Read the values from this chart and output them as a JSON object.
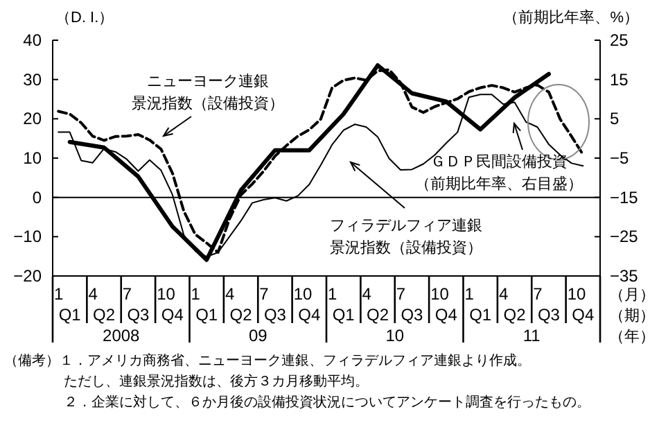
{
  "chart_data": {
    "type": "line",
    "ylabel": "（D. I.）",
    "y2label": "（前期比年率、%）",
    "xlabel": "（月）（期）（年）",
    "categories": [
      "1",
      null,
      null,
      "4",
      null,
      null,
      "7",
      null,
      null,
      "10",
      null,
      null,
      "1",
      null,
      null,
      "4",
      null,
      null,
      "7",
      null,
      null,
      "10",
      null,
      null,
      "1",
      null,
      null,
      "4",
      null,
      null,
      "7",
      null,
      null,
      "10",
      null,
      null,
      "1",
      null,
      null,
      "4",
      null,
      null,
      "7",
      null,
      null,
      "10",
      null,
      null
    ],
    "ylim": [
      -20,
      40
    ],
    "yticks": [
      -20,
      -10,
      0,
      10,
      20,
      30,
      40
    ],
    "y2lim": [
      -35,
      25
    ],
    "y2ticks": [
      -35,
      -25,
      -15,
      -5,
      5,
      15,
      25
    ],
    "ref_lines": [
      {
        "axis": "y",
        "value": 0,
        "color": "#000000"
      }
    ],
    "series": [
      {
        "name": "ニューヨーク連銀景況指数（設備投資）",
        "color": "#000000",
        "line_style": "dashed",
        "values": [
          21.9,
          21.2,
          19,
          15.6,
          14.5,
          15.5,
          15.6,
          16,
          14.6,
          12.3,
          6.2,
          -3.5,
          -9.4,
          -11.6,
          -14,
          -5.5,
          0.6,
          3.4,
          6.7,
          10.5,
          13.2,
          15.6,
          17.2,
          19.9,
          27.9,
          29.8,
          30.4,
          29.8,
          32.2,
          32.5,
          29.2,
          23,
          21.6,
          23.1,
          24.1,
          25.1,
          26.9,
          27.9,
          28.5,
          27.9,
          26.8,
          27.9,
          28.6,
          26.8,
          19.9,
          15.5,
          10.9,
          null
        ]
      },
      {
        "name": "フィラデルフィア連銀景況指数（設備投資）",
        "color": "#000000",
        "line_style": "solid",
        "values": [
          16.6,
          16.6,
          9.4,
          8.8,
          12.4,
          11.6,
          9.7,
          6.7,
          9.5,
          6.9,
          0.7,
          -9.6,
          -13.6,
          -15.1,
          -14,
          -10,
          -6,
          -1.4,
          -0.6,
          -0.1,
          -0.9,
          0.4,
          3.3,
          8.2,
          13.4,
          17.1,
          18.6,
          17.9,
          15.4,
          9.9,
          7,
          7.1,
          8.5,
          10.8,
          13.8,
          16.6,
          25.5,
          26.2,
          26.2,
          23.7,
          24.2,
          19.2,
          17.9,
          13.5,
          10.8,
          8.7,
          8,
          null
        ]
      },
      {
        "name": "ＧＤＰ民間設備投資（前期比年率、右目盛）",
        "color": "#000000",
        "line_style": "solid",
        "axis": "y2",
        "values": [
          null,
          -0.9,
          null,
          null,
          -2.3,
          null,
          null,
          -9.7,
          null,
          null,
          -22.4,
          null,
          null,
          -30.9,
          null,
          null,
          -13.2,
          null,
          null,
          -3,
          null,
          null,
          -3,
          null,
          null,
          6.2,
          null,
          null,
          18.6,
          null,
          null,
          11.5,
          null,
          null,
          9.4,
          null,
          null,
          2.3,
          null,
          null,
          10.4,
          null,
          null,
          16.4,
          null,
          null,
          null,
          null
        ]
      }
    ],
    "annotations": [
      "Q1",
      "Q2",
      "Q3",
      "Q4",
      "Q1",
      "Q2",
      "Q3",
      "Q4",
      "Q1",
      "Q2",
      "Q3",
      "Q4",
      "Q1",
      "Q2",
      "Q3",
      "Q4",
      "2008",
      "09",
      "10",
      "11",
      "（備考）１．アメリカ商務省、ニューヨーク連銀、フィラデルフィア連銀より作成。",
      "ただし、連銀景況指数は、後方３カ月移動平均。",
      "２．企業に対して、６か月後の設備投資状況についてアンケート調査を行ったもの。"
    ]
  }
}
